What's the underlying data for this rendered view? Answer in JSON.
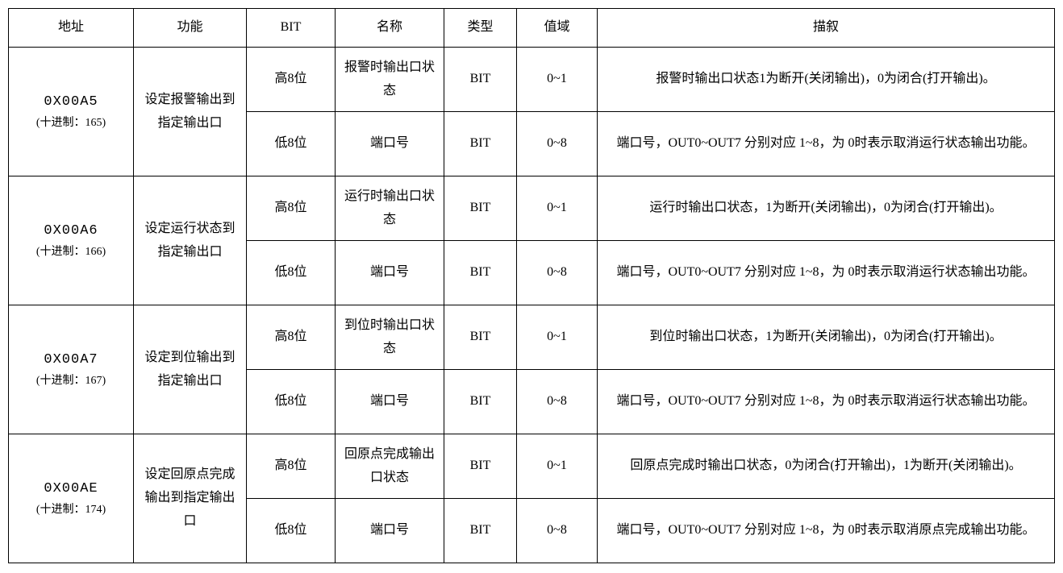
{
  "table": {
    "headers": {
      "addr": "地址",
      "func": "功能",
      "bit": "BIT",
      "name": "名称",
      "type": "类型",
      "range": "值域",
      "desc": "描叙"
    },
    "rows": [
      {
        "addr_hex": "0X00A5",
        "addr_dec": "(十进制：165)",
        "func": "设定报警输出到指定输出口",
        "sub": [
          {
            "bit": "高8位",
            "name": "报警时输出口状态",
            "type": "BIT",
            "range": "0~1",
            "desc": "报警时输出口状态1为断开(关闭输出)，0为闭合(打开输出)。"
          },
          {
            "bit": "低8位",
            "name": "端口号",
            "type": "BIT",
            "range": "0~8",
            "desc": "端口号，OUT0~OUT7 分别对应 1~8，为 0时表示取消运行状态输出功能。"
          }
        ]
      },
      {
        "addr_hex": "0X00A6",
        "addr_dec": "(十进制：166)",
        "func": "设定运行状态到指定输出口",
        "sub": [
          {
            "bit": "高8位",
            "name": "运行时输出口状态",
            "type": "BIT",
            "range": "0~1",
            "desc": "运行时输出口状态，1为断开(关闭输出)，0为闭合(打开输出)。"
          },
          {
            "bit": "低8位",
            "name": "端口号",
            "type": "BIT",
            "range": "0~8",
            "desc": "端口号，OUT0~OUT7 分别对应 1~8，为 0时表示取消运行状态输出功能。"
          }
        ]
      },
      {
        "addr_hex": "0X00A7",
        "addr_dec": "(十进制：167)",
        "func": "设定到位输出到指定输出口",
        "sub": [
          {
            "bit": "高8位",
            "name": "到位时输出口状态",
            "type": "BIT",
            "range": "0~1",
            "desc": "到位时输出口状态，1为断开(关闭输出)，0为闭合(打开输出)。"
          },
          {
            "bit": "低8位",
            "name": "端口号",
            "type": "BIT",
            "range": "0~8",
            "desc": "端口号，OUT0~OUT7 分别对应 1~8，为 0时表示取消运行状态输出功能。"
          }
        ]
      },
      {
        "addr_hex": "0X00AE",
        "addr_dec": "(十进制：174)",
        "func": "设定回原点完成输出到指定输出口",
        "sub": [
          {
            "bit": "高8位",
            "name": "回原点完成输出口状态",
            "type": "BIT",
            "range": "0~1",
            "desc": "回原点完成时输出口状态，0为闭合(打开输出)，1为断开(关闭输出)。"
          },
          {
            "bit": "低8位",
            "name": "端口号",
            "type": "BIT",
            "range": "0~8",
            "desc": "端口号，OUT0~OUT7 分别对应 1~8，为 0时表示取消原点完成输出功能。"
          }
        ]
      }
    ]
  }
}
